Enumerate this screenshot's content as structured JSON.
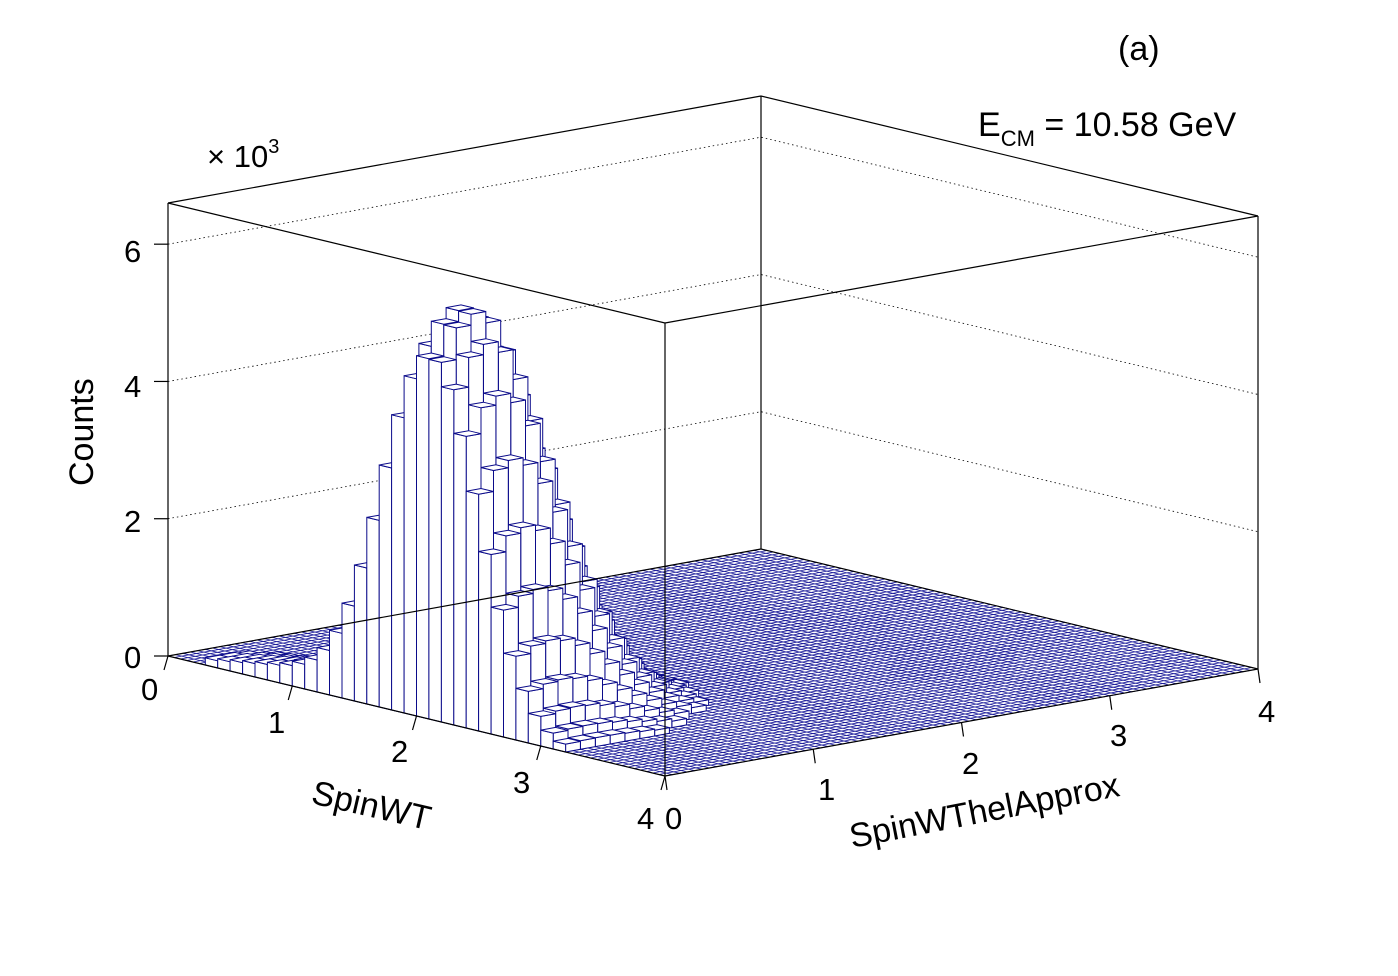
{
  "panel_label": "(a)",
  "annotation": {
    "main": "E",
    "sub": "CM",
    "rest": " = 10.58 GeV"
  },
  "exponent_label": {
    "prefix": "× 10",
    "power": "3"
  },
  "colors": {
    "histogram_line": "#0b0b8a",
    "floor": "#1a1a99",
    "frame": "#000000",
    "background": "#ffffff"
  },
  "chart_data": {
    "type": "lego-3d-histogram",
    "xlabel": "SpinWT",
    "ylabel": "SpinWThelApprox",
    "zlabel": "Counts",
    "xlim": [
      0,
      4
    ],
    "ylim": [
      0,
      4
    ],
    "zlim": [
      0,
      6.6
    ],
    "z_multiplier": "× 10^3",
    "x_ticks": [
      "0",
      "1",
      "2",
      "3",
      "4"
    ],
    "y_ticks": [
      "0",
      "1",
      "2",
      "3",
      "4"
    ],
    "z_ticks": [
      "0",
      "2",
      "4",
      "6"
    ],
    "grid": true,
    "peak": {
      "x": 2.1,
      "y": 0.25,
      "counts": 5.9
    },
    "description_note": ""
  }
}
